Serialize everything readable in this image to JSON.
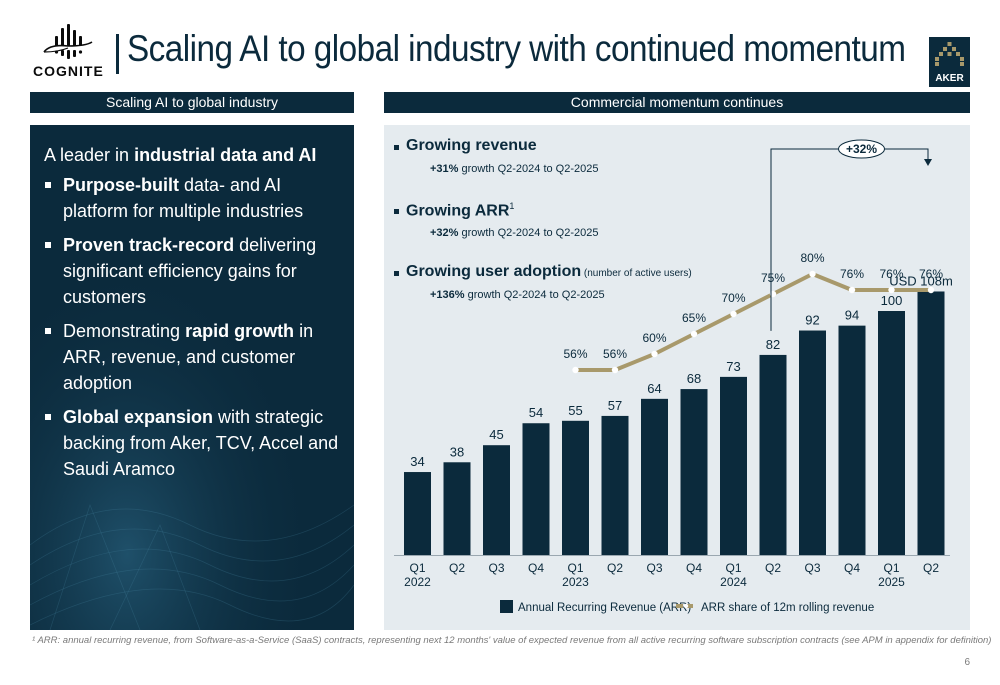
{
  "brand": {
    "logo_text": "COGNITE",
    "partner_logo_text": "AKER",
    "primary_color": "#0b2a3c",
    "accent_color": "#a8996b"
  },
  "page_title": "Scaling AI to global industry with continued momentum",
  "left_section": {
    "header": "Scaling AI to global industry",
    "lead_prefix": "A leader in ",
    "lead_bold": "industrial data and AI",
    "bullets": [
      {
        "bold": "Purpose-built",
        "text": " data- and AI platform for multiple industries",
        "bold_first": true
      },
      {
        "bold": "Proven track-record",
        "text": " delivering significant efficiency gains for customers",
        "bold_first": true
      },
      {
        "pre": "Demonstrating ",
        "bold": "rapid growth",
        "text": " in ARR, revenue, and customer adoption",
        "bold_first": false
      },
      {
        "bold": "Global expansion",
        "text": " with strategic backing from Aker, TCV, Accel and Saudi Aramco",
        "bold_first": true
      }
    ]
  },
  "right_section": {
    "header": "Commercial momentum continues",
    "kpis": [
      {
        "title": "Growing revenue",
        "sup": "",
        "note": "",
        "growth": "+31%",
        "growth_text": " growth Q2-2024 to Q2-2025"
      },
      {
        "title": "Growing ARR",
        "sup": "1",
        "note": "",
        "growth": "+32%",
        "growth_text": " growth Q2-2024 to Q2-2025"
      },
      {
        "title": "Growing user adoption",
        "sup": "",
        "note": " (number of active users)",
        "growth": "+136%",
        "growth_text": " growth Q2-2024 to Q2-2025"
      }
    ]
  },
  "chart_data": {
    "type": "bar",
    "title": "Commercial momentum continues",
    "xlabel": "",
    "ylabel": "",
    "categories": [
      "Q1 2022",
      "Q2",
      "Q3",
      "Q4",
      "Q1 2023",
      "Q2",
      "Q3",
      "Q4",
      "Q1 2024",
      "Q2",
      "Q3",
      "Q4",
      "Q1 2025",
      "Q2"
    ],
    "tick_labels": [
      [
        "Q1",
        "2022"
      ],
      [
        "Q2",
        ""
      ],
      [
        "Q3",
        ""
      ],
      [
        "Q4",
        ""
      ],
      [
        "Q1",
        "2023"
      ],
      [
        "Q2",
        ""
      ],
      [
        "Q3",
        ""
      ],
      [
        "Q4",
        ""
      ],
      [
        "Q1",
        "2024"
      ],
      [
        "Q2",
        ""
      ],
      [
        "Q3",
        ""
      ],
      [
        "Q4",
        ""
      ],
      [
        "Q1",
        "2025"
      ],
      [
        "Q2",
        ""
      ]
    ],
    "series": [
      {
        "name": "Annual Recurring Revenue (ARR)",
        "type": "bar",
        "unit": "USD m",
        "values": [
          34,
          38,
          45,
          54,
          55,
          57,
          64,
          68,
          73,
          82,
          92,
          94,
          100,
          108
        ],
        "labels": [
          "34",
          "38",
          "45",
          "54",
          "55",
          "57",
          "64",
          "68",
          "73",
          "82",
          "92",
          "94",
          "100",
          "USD 108m"
        ],
        "color": "#0b2a3c"
      },
      {
        "name": "ARR share of 12m rolling revenue",
        "type": "line",
        "unit": "%",
        "values": [
          null,
          null,
          null,
          null,
          56,
          56,
          60,
          65,
          70,
          75,
          80,
          76,
          76,
          76
        ],
        "labels": [
          "",
          "",
          "",
          "",
          "56%",
          "56%",
          "60%",
          "65%",
          "70%",
          "75%",
          "80%",
          "76%",
          "76%",
          "76%"
        ],
        "color": "#a8996b"
      }
    ],
    "annotation": {
      "text": "+32%",
      "from": "Q2 2024",
      "to": "Q2 2025"
    },
    "legend": {
      "position": "bottom"
    },
    "grid": false,
    "ylim": [
      0,
      112
    ]
  },
  "footnote": "¹ ARR: annual recurring revenue, from Software-as-a-Service (SaaS) contracts, representing next 12 months' value of expected revenue from all active recurring software subscription contracts (see APM in appendix for definition)",
  "page_number": "6"
}
